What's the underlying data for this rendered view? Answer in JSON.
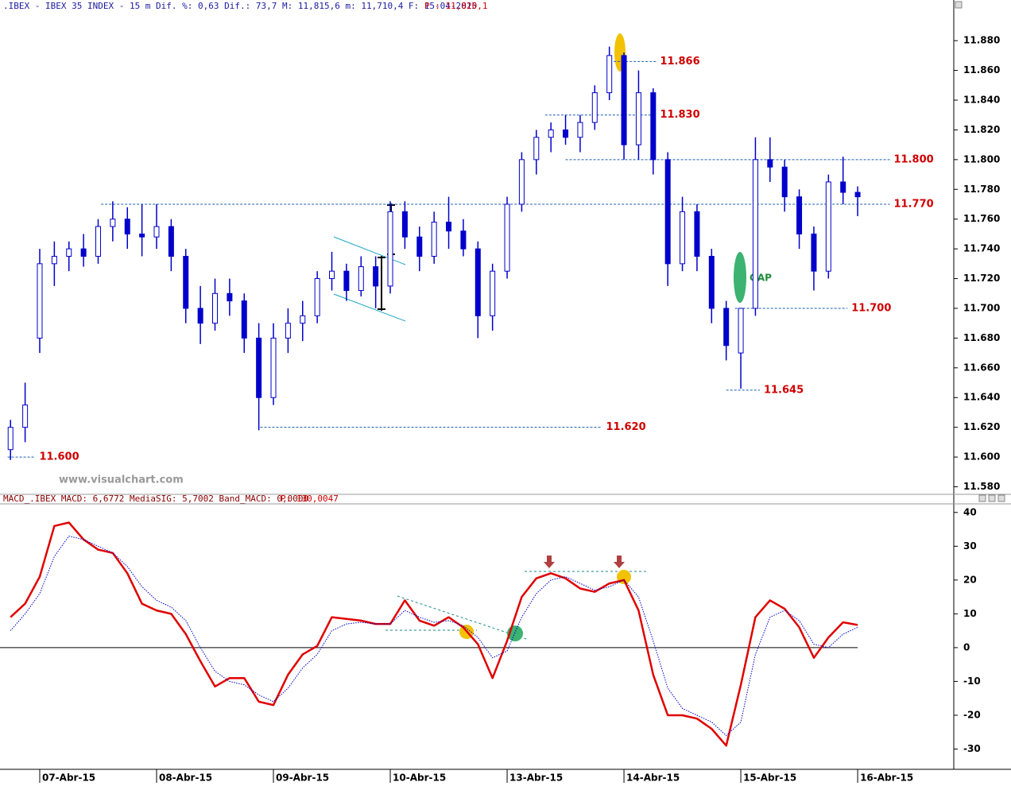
{
  "chart_data": [
    {
      "type": "candlestick",
      "title": ".IBEX - IBEX 35 INDEX -  15 m Dif. %: 0,63 Dif.: 73,7 M: 11,815,6 m: 11,710,4 F: 15-04-2015",
      "title_price": "P : 11,820,1",
      "watermark": "www.visualchart.com",
      "annotation": "GAP",
      "color": "#0000cc",
      "xlim": [
        -2.72,
        62.58
      ],
      "ylim": [
        11576,
        11902
      ],
      "yticks": [
        {
          "value": 11580,
          "label": "11.580"
        },
        {
          "value": 11600,
          "label": "11.600"
        },
        {
          "value": 11620,
          "label": "11.620"
        },
        {
          "value": 11640,
          "label": "11.640"
        },
        {
          "value": 11660,
          "label": "11.660"
        },
        {
          "value": 11680,
          "label": "11.680"
        },
        {
          "value": 11700,
          "label": "11.700"
        },
        {
          "value": 11720,
          "label": "11.720"
        },
        {
          "value": 11740,
          "label": "11.740"
        },
        {
          "value": 11760,
          "label": "11.760"
        },
        {
          "value": 11780,
          "label": "11.780"
        },
        {
          "value": 11800,
          "label": "11.800"
        },
        {
          "value": 11820,
          "label": "11.820"
        },
        {
          "value": 11840,
          "label": "11.840"
        },
        {
          "value": 11860,
          "label": "11.860"
        },
        {
          "value": 11880,
          "label": "11.880"
        }
      ],
      "x": [
        -2,
        -1,
        0,
        1,
        2,
        3,
        4,
        5,
        6,
        7,
        8,
        9,
        10,
        11,
        12,
        13,
        14,
        15,
        16,
        17,
        18,
        19,
        20,
        21,
        22,
        23,
        24,
        25,
        26,
        27,
        28,
        29,
        30,
        31,
        32,
        33,
        34,
        35,
        36,
        37,
        38,
        39,
        40,
        41,
        42,
        43,
        44,
        45,
        46,
        47,
        48,
        49,
        50,
        51,
        52,
        53,
        54,
        55,
        56
      ],
      "open": [
        11605,
        11620,
        11680,
        11730,
        11735,
        11740,
        11735,
        11755,
        11760,
        11750,
        11748,
        11755,
        11735,
        11700,
        11690,
        11710,
        11705,
        11680,
        11640,
        11680,
        11690,
        11695,
        11720,
        11725,
        11712,
        11728,
        11715,
        11765,
        11748,
        11735,
        11758,
        11752,
        11740,
        11695,
        11725,
        11770,
        11800,
        11815,
        11820,
        11815,
        11825,
        11845,
        11870,
        11810,
        11845,
        11800,
        11730,
        11765,
        11735,
        11700,
        11670,
        11700,
        11800,
        11795,
        11775,
        11750,
        11725,
        11785,
        11778
      ],
      "high": [
        11625,
        11650,
        11740,
        11745,
        11745,
        11750,
        11760,
        11772,
        11768,
        11770,
        11770,
        11760,
        11740,
        11715,
        11720,
        11720,
        11710,
        11690,
        11690,
        11700,
        11705,
        11725,
        11738,
        11730,
        11735,
        11735,
        11772,
        11772,
        11755,
        11765,
        11775,
        11760,
        11745,
        11730,
        11775,
        11805,
        11820,
        11825,
        11830,
        11830,
        11850,
        11876,
        11872,
        11860,
        11848,
        11805,
        11775,
        11770,
        11740,
        11705,
        11700,
        11815,
        11815,
        11800,
        11780,
        11755,
        11790,
        11802,
        11782
      ],
      "low": [
        11598,
        11610,
        11670,
        11715,
        11725,
        11728,
        11730,
        11745,
        11740,
        11735,
        11740,
        11725,
        11690,
        11676,
        11685,
        11695,
        11670,
        11618,
        11635,
        11670,
        11678,
        11690,
        11712,
        11705,
        11708,
        11700,
        11710,
        11740,
        11725,
        11730,
        11740,
        11735,
        11680,
        11685,
        11720,
        11765,
        11790,
        11805,
        11810,
        11805,
        11820,
        11840,
        11800,
        11800,
        11790,
        11715,
        11725,
        11725,
        11690,
        11665,
        11646,
        11695,
        11785,
        11765,
        11740,
        11712,
        11720,
        11770,
        11762
      ],
      "close": [
        11620,
        11635,
        11730,
        11735,
        11740,
        11735,
        11755,
        11760,
        11750,
        11748,
        11755,
        11735,
        11700,
        11690,
        11710,
        11705,
        11680,
        11640,
        11680,
        11690,
        11695,
        11720,
        11725,
        11712,
        11728,
        11715,
        11765,
        11748,
        11735,
        11758,
        11752,
        11740,
        11695,
        11725,
        11770,
        11800,
        11815,
        11820,
        11815,
        11825,
        11845,
        11870,
        11810,
        11845,
        11800,
        11730,
        11765,
        11735,
        11700,
        11675,
        11700,
        11800,
        11795,
        11775,
        11750,
        11725,
        11785,
        11778,
        11775
      ],
      "levels": [
        {
          "value": 11600,
          "label": "11.600",
          "x": [
            -2.2,
            -0.3
          ]
        },
        {
          "value": 11620,
          "label": "11.620",
          "x": [
            15.1,
            38.5
          ]
        },
        {
          "value": 11645,
          "label": "11.645",
          "x": [
            47,
            49.3
          ]
        },
        {
          "value": 11700,
          "label": "11.700",
          "x": [
            47.6,
            55.3
          ]
        },
        {
          "value": 11770,
          "label": "11.770",
          "x": [
            4.2,
            58.2
          ]
        },
        {
          "value": 11800,
          "label": "11.800",
          "x": [
            36,
            58.2
          ]
        },
        {
          "value": 11830,
          "label": "11.830",
          "x": [
            34.6,
            42.2
          ]
        },
        {
          "value": 11866,
          "label": "11.866",
          "x": [
            39.3,
            42.2
          ]
        }
      ]
    },
    {
      "type": "line",
      "title": "MACD_.IBEX MACD: 6,6772 MediaSIG: 5,7002 Band_MACD: 0,0000",
      "title_price": "P: 130,0047",
      "xlim": [
        -2.72,
        62.58
      ],
      "ylim": [
        -36,
        42.3
      ],
      "yticks": [
        -30,
        -20,
        -10,
        0,
        10,
        20,
        30,
        40
      ],
      "xticks": [
        {
          "value": 0,
          "label": "07-Abr-15"
        },
        {
          "value": 8,
          "label": "08-Abr-15"
        },
        {
          "value": 16,
          "label": "09-Abr-15"
        },
        {
          "value": 24,
          "label": "10-Abr-15"
        },
        {
          "value": 32,
          "label": "13-Abr-15"
        },
        {
          "value": 40,
          "label": "14-Abr-15"
        },
        {
          "value": 48,
          "label": "15-Abr-15"
        },
        {
          "value": 56,
          "label": "16-Abr-15"
        }
      ],
      "x": [
        -2,
        -1,
        0,
        1,
        2,
        3,
        4,
        5,
        6,
        7,
        8,
        9,
        10,
        11,
        12,
        13,
        14,
        15,
        16,
        17,
        18,
        19,
        20,
        21,
        22,
        23,
        24,
        25,
        26,
        27,
        28,
        29,
        30,
        31,
        32,
        33,
        34,
        35,
        36,
        37,
        38,
        39,
        40,
        41,
        42,
        43,
        44,
        45,
        46,
        47,
        48,
        49,
        50,
        51,
        52,
        53,
        54,
        55,
        56
      ],
      "series": [
        {
          "color": "#e00000",
          "values": [
            9,
            13,
            21,
            36,
            37,
            32,
            29,
            28,
            22,
            13,
            11,
            10,
            4,
            -4,
            -11.5,
            -9,
            -9,
            -16,
            -17,
            -8,
            -2,
            0.5,
            9,
            8.5,
            8,
            7,
            7,
            14,
            8,
            6.5,
            9,
            6,
            1,
            -9,
            2,
            15,
            20.5,
            22,
            20.5,
            17.5,
            16.5,
            19,
            20,
            11,
            -8,
            -20,
            -20,
            -21,
            -24,
            -29,
            -11,
            9,
            14,
            11.5,
            6,
            -3,
            3,
            7.5,
            6.7
          ]
        },
        {
          "color": "#0000cc",
          "values": [
            5,
            10,
            16,
            27,
            33,
            32,
            30,
            28,
            24,
            18,
            14,
            12,
            8,
            0,
            -7,
            -10,
            -11,
            -14,
            -16,
            -12,
            -6,
            -2,
            5,
            7,
            7.5,
            7,
            7,
            11,
            9,
            7.5,
            8,
            6.5,
            3,
            -3,
            -1,
            9,
            16,
            20,
            21,
            19,
            17,
            18,
            20,
            15,
            2,
            -12,
            -18,
            -20,
            -22,
            -26,
            -22,
            -2,
            9,
            11,
            8,
            1,
            0,
            4,
            6
          ]
        }
      ]
    }
  ]
}
